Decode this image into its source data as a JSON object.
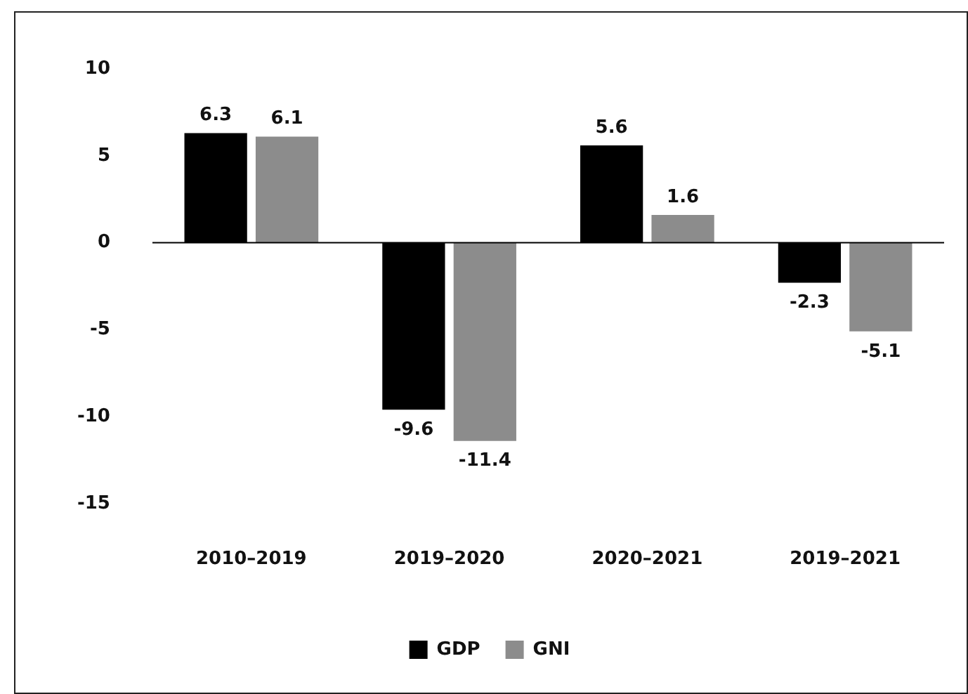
{
  "chart_data": {
    "type": "bar",
    "categories": [
      "2010–2019",
      "2019–2020",
      "2020–2021",
      "2019–2021"
    ],
    "series": [
      {
        "name": "GDP",
        "color": "#000000",
        "values": [
          6.3,
          -9.6,
          5.6,
          -2.3
        ]
      },
      {
        "name": "GNI",
        "color": "#8c8c8c",
        "values": [
          6.1,
          -11.4,
          1.6,
          -5.1
        ]
      }
    ],
    "ylim": [
      -15,
      10
    ],
    "yticks": [
      -15,
      -10,
      -5,
      0,
      5,
      10
    ],
    "data_labels": true,
    "legend": "bottom",
    "grid": false,
    "ref_lines": [
      {
        "axis": "y",
        "value": 0,
        "color": "#000000"
      }
    ]
  }
}
